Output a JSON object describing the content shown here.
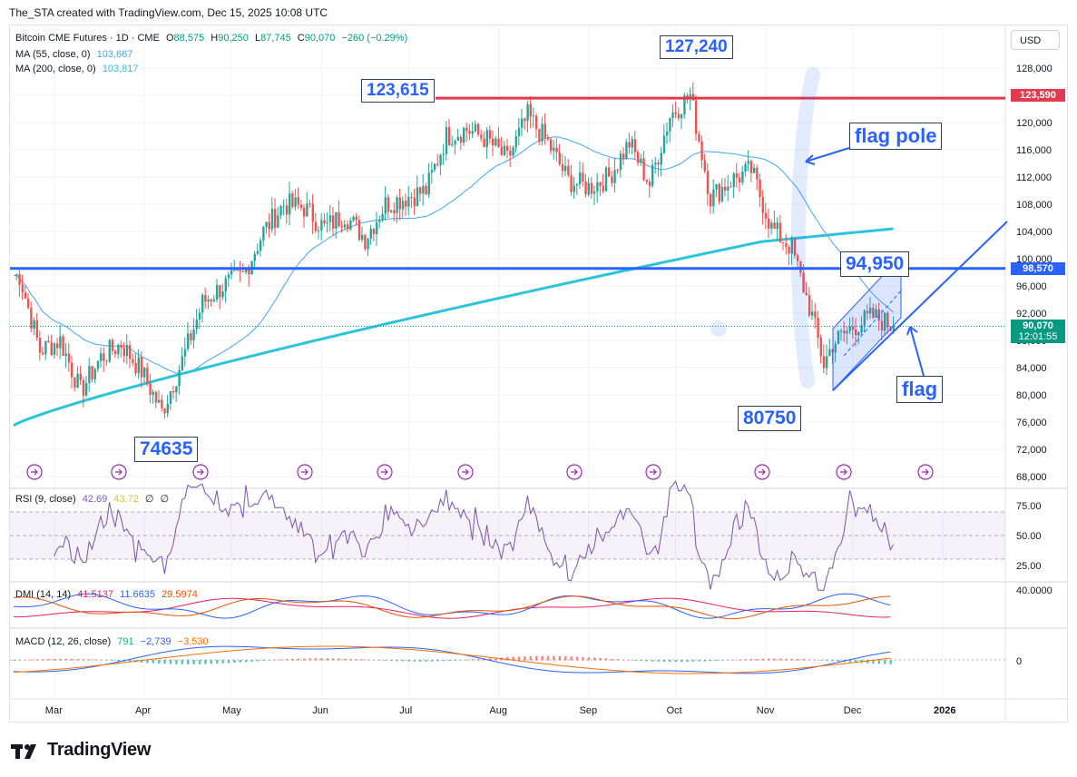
{
  "header": {
    "credit": "The_STA created with TradingView.com, Dec 15, 2025 10:08 UTC"
  },
  "legend": {
    "symbol": "Bitcoin CME Futures · 1D · CME",
    "ohlc": {
      "o_label": "O",
      "o": "88,575",
      "h_label": "H",
      "h": "90,250",
      "l_label": "L",
      "l": "87,745",
      "c_label": "C",
      "c": "90,070",
      "change": "−260 (−0.29%)"
    },
    "ma55": {
      "label": "MA (55, close, 0)",
      "value": "103,667"
    },
    "ma200": {
      "label": "MA (200, close, 0)",
      "value": "103,817"
    }
  },
  "currency_button": "USD",
  "annotations": {
    "high_127240": "127,240",
    "high_123615": "123,615",
    "low_74635": "74635",
    "low_80750": "80750",
    "level_94950": "94,950",
    "flag_pole": "flag pole",
    "flag": "flag"
  },
  "price_tags": {
    "resistance": "123,590",
    "support": "98,570",
    "last_price": "90,070",
    "countdown": "12:01:55"
  },
  "rsi_legend": {
    "label": "RSI (9, close)",
    "v1": "42.69",
    "v2": "43.72",
    "v3": "∅",
    "v4": "∅"
  },
  "dmi_legend": {
    "label": "DMI (14, 14)",
    "v1": "41.5137",
    "v2": "11.6635",
    "v3": "29.5974"
  },
  "macd_legend": {
    "label": "MACD (12, 26, close)",
    "v1": "791",
    "v2": "−2,739",
    "v3": "−3,530"
  },
  "colors": {
    "up": "#26a69a",
    "down": "#ef5350",
    "ma55": "#42a5f5",
    "ma200": "#2bc4d8",
    "resistance": "#e03a4e",
    "support": "#2962ff",
    "annotation": "#2962ff",
    "rsi": "#7e57c2",
    "rsi_ma": "#f5d04a",
    "dmi_plus": "#2962ff",
    "dmi_minus": "#e65100",
    "adx": "#e91e63",
    "macd": "#2962ff",
    "signal": "#ff6d00"
  },
  "chart_data": {
    "type": "candlestick",
    "title": "Bitcoin CME Futures · 1D · CME",
    "y_unit": "USD",
    "y_ticks": [
      128000,
      124000,
      120000,
      116000,
      112000,
      108000,
      104000,
      100000,
      96000,
      92000,
      88000,
      84000,
      80000,
      76000,
      72000,
      68000
    ],
    "y_tick_labels": [
      "128,000",
      "124,000",
      "120,000",
      "116,000",
      "112,000",
      "108,000",
      "104,000",
      "100,000",
      "96,000",
      "92,000",
      "88,000",
      "84,000",
      "80,000",
      "76,000",
      "72,000",
      "68,000"
    ],
    "ylim": [
      67000,
      131000
    ],
    "x_tick_labels": [
      "Mar",
      "Apr",
      "May",
      "Jun",
      "Jul",
      "Aug",
      "Sep",
      "Oct",
      "Nov",
      "Dec",
      "2026"
    ],
    "price_path": [
      [
        "2025-02-17",
        97500
      ],
      [
        "2025-02-24",
        86500
      ],
      [
        "2025-03-03",
        88000
      ],
      [
        "2025-03-10",
        80500
      ],
      [
        "2025-03-17",
        85500
      ],
      [
        "2025-03-24",
        87500
      ],
      [
        "2025-03-31",
        83500
      ],
      [
        "2025-04-07",
        77500
      ],
      [
        "2025-04-14",
        85000
      ],
      [
        "2025-04-21",
        93500
      ],
      [
        "2025-04-28",
        96000
      ],
      [
        "2025-05-05",
        97500
      ],
      [
        "2025-05-12",
        104000
      ],
      [
        "2025-05-19",
        108000
      ],
      [
        "2025-05-26",
        107500
      ],
      [
        "2025-06-02",
        104500
      ],
      [
        "2025-06-09",
        106500
      ],
      [
        "2025-06-16",
        103000
      ],
      [
        "2025-06-23",
        108000
      ],
      [
        "2025-06-30",
        109000
      ],
      [
        "2025-07-07",
        110000
      ],
      [
        "2025-07-14",
        118000
      ],
      [
        "2025-07-21",
        119000
      ],
      [
        "2025-07-28",
        117500
      ],
      [
        "2025-08-04",
        114500
      ],
      [
        "2025-08-11",
        121000
      ],
      [
        "2025-08-18",
        117000
      ],
      [
        "2025-08-25",
        111500
      ],
      [
        "2025-09-01",
        110500
      ],
      [
        "2025-09-08",
        112000
      ],
      [
        "2025-09-15",
        117000
      ],
      [
        "2025-09-22",
        111000
      ],
      [
        "2025-09-29",
        121000
      ],
      [
        "2025-10-06",
        124000
      ],
      [
        "2025-10-13",
        109000
      ],
      [
        "2025-10-20",
        111500
      ],
      [
        "2025-10-27",
        113000
      ],
      [
        "2025-11-03",
        104500
      ],
      [
        "2025-11-10",
        101500
      ],
      [
        "2025-11-17",
        91500
      ],
      [
        "2025-11-21",
        84500
      ],
      [
        "2025-11-24",
        87500
      ],
      [
        "2025-12-01",
        90000
      ],
      [
        "2025-12-08",
        91500
      ],
      [
        "2025-12-15",
        90070
      ]
    ],
    "series": [
      {
        "name": "MA (55, close, 0)",
        "value_last": 103667
      },
      {
        "name": "MA (200, close, 0)",
        "value_last": 103817
      }
    ],
    "horizontal_lines": [
      {
        "label": "123,590",
        "value": 123590
      },
      {
        "label": "98,570",
        "value": 98570
      }
    ],
    "last_price": 90070,
    "marked_levels": {
      "high": 127240,
      "resistance": 123615,
      "low": 74635,
      "flag_low": 80750,
      "flag_high": 94950
    }
  },
  "rsi_panel": {
    "ticks": [
      "75.00",
      "50.00",
      "25.00"
    ],
    "upper": 70,
    "lower": 30,
    "last": 42.69
  },
  "dmi_panel": {
    "ticks": [
      "40.0000"
    ]
  },
  "macd_panel": {
    "ticks": [
      "0"
    ]
  }
}
